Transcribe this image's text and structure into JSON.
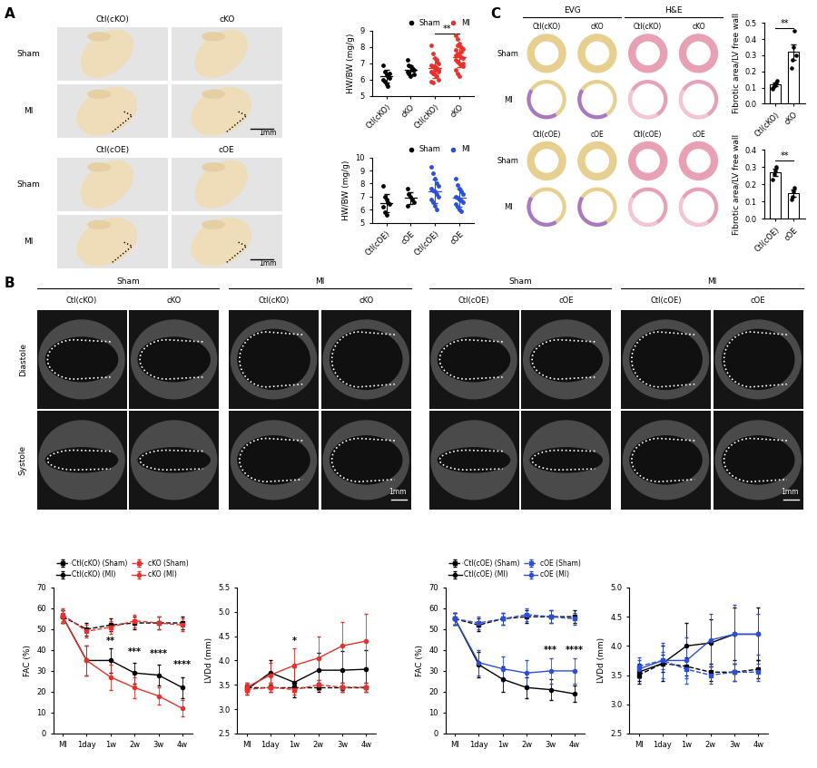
{
  "figure": {
    "panel_labels": [
      "A",
      "B",
      "C"
    ],
    "scale_bar": "1mm",
    "panel_A": {
      "rows": [
        "Sham",
        "MI"
      ],
      "groups": [
        {
          "columns": [
            "Ctl(cKO)",
            "cKO"
          ]
        },
        {
          "columns": [
            "Ctl(cOE)",
            "cOE"
          ]
        }
      ]
    },
    "panel_B": {
      "rows": [
        "Diastole",
        "Systole"
      ],
      "groups": [
        {
          "title": "Sham",
          "columns": [
            "Ctl(cKO)",
            "cKO"
          ]
        },
        {
          "title": "MI",
          "columns": [
            "Ctl(cKO)",
            "cKO"
          ]
        },
        {
          "title": "Sham",
          "columns": [
            "Ctl(cOE)",
            "cOE"
          ]
        },
        {
          "title": "MI",
          "columns": [
            "Ctl(cOE)",
            "cOE"
          ]
        }
      ]
    },
    "panel_C": {
      "stains": [
        "EVG",
        "H&E"
      ],
      "rows": [
        "Sham",
        "MI"
      ],
      "groups": [
        {
          "columns": [
            "Ctl(cKO)",
            "cKO"
          ]
        },
        {
          "columns": [
            "Ctl(cOE)",
            "cOE"
          ]
        }
      ]
    }
  },
  "chart_data": [
    {
      "type": "scatter",
      "y_label": "HW/BW (mg/g)",
      "categories": [
        "Ctl(cKO)",
        "cKO",
        "Ctl(cKO)",
        "cKO"
      ],
      "ylim": [
        5,
        9
      ],
      "yticks": [
        5,
        6,
        7,
        8,
        9
      ],
      "legend": "lower right",
      "series": [
        {
          "name": "Sham",
          "color": "#000000",
          "points": [
            [
              6.9,
              6.5,
              6.3,
              6.2,
              6.1,
              6.0,
              5.9,
              5.7,
              5.6,
              6.4
            ],
            [
              7.2,
              6.9,
              6.8,
              6.7,
              6.6,
              6.5,
              6.4,
              6.2,
              6.6,
              6.3
            ],
            null,
            null
          ],
          "mean": [
            6.2,
            6.6,
            null,
            null
          ],
          "sd": [
            0.4,
            0.3,
            null,
            null
          ]
        },
        {
          "name": "MI",
          "color": "#e8312b",
          "points": [
            null,
            null,
            [
              8.1,
              7.6,
              7.3,
              7.1,
              7.0,
              6.9,
              6.8,
              6.8,
              6.7,
              6.6,
              6.5,
              6.4,
              6.3,
              6.2,
              6.0,
              5.9,
              5.8,
              6.6,
              7.2,
              6.5
            ],
            [
              8.7,
              8.5,
              8.2,
              8.0,
              7.9,
              7.8,
              7.6,
              7.5,
              7.4,
              7.3,
              7.2,
              7.1,
              7.0,
              6.9,
              6.8,
              6.6,
              6.4,
              6.2,
              7.7,
              7.0,
              7.5,
              8.1
            ]
          ],
          "mean": [
            null,
            null,
            6.7,
            7.4
          ],
          "sd": [
            null,
            null,
            0.6,
            0.65
          ]
        }
      ],
      "annotations": [
        {
          "text": "**",
          "between": [
            2,
            3
          ],
          "y": 8.85
        }
      ]
    },
    {
      "type": "scatter",
      "y_label": "HW/BW (mg/g)",
      "categories": [
        "Ctl(cOE)",
        "cOE",
        "Ctl(cOE)",
        "cOE"
      ],
      "ylim": [
        5,
        10
      ],
      "yticks": [
        5,
        6,
        7,
        8,
        9,
        10
      ],
      "legend": "lower right",
      "series": [
        {
          "name": "Sham",
          "color": "#000000",
          "points": [
            [
              7.8,
              7.0,
              6.8,
              6.6,
              6.4,
              6.2,
              5.8,
              5.6
            ],
            [
              7.6,
              7.2,
              7.0,
              6.8,
              6.6,
              6.3
            ],
            null,
            null
          ],
          "mean": [
            6.5,
            6.9,
            null,
            null
          ],
          "sd": [
            0.7,
            0.45,
            null,
            null
          ]
        },
        {
          "name": "MI",
          "color": "#2a4fd8",
          "points": [
            null,
            null,
            [
              9.3,
              8.8,
              8.4,
              8.0,
              7.8,
              7.6,
              7.5,
              7.4,
              7.2,
              7.0,
              6.8,
              6.6,
              6.3,
              6.0
            ],
            [
              8.4,
              7.9,
              7.6,
              7.4,
              7.2,
              7.0,
              6.9,
              6.8,
              6.7,
              6.6,
              6.4,
              6.2,
              6.0,
              5.9
            ]
          ],
          "mean": [
            null,
            null,
            7.4,
            6.9
          ],
          "sd": [
            null,
            null,
            0.9,
            0.7
          ]
        }
      ],
      "annotations": []
    },
    {
      "type": "bar",
      "y_label": "Fibrotic area/LV free wall",
      "categories": [
        "Ctl(cKO)",
        "cKO"
      ],
      "values": [
        0.12,
        0.32
      ],
      "error": [
        0.01,
        0.05
      ],
      "points": [
        [
          0.09,
          0.11,
          0.12,
          0.13,
          0.14,
          0.1,
          0.12
        ],
        [
          0.22,
          0.27,
          0.35,
          0.45,
          0.3
        ]
      ],
      "color": "#ffffff",
      "ylim": [
        0,
        0.5
      ],
      "yticks": [
        {
          "value": 0,
          "label": "0.0"
        },
        0.1,
        0.2,
        0.3,
        0.4,
        0.5
      ],
      "annotations": [
        {
          "text": "**",
          "between": [
            0,
            1
          ],
          "y": 0.47
        }
      ]
    },
    {
      "type": "bar",
      "y_label": "Fibrotic area/LV free wall",
      "categories": [
        "Ctl(cOE)",
        "cOE"
      ],
      "values": [
        0.27,
        0.15
      ],
      "error": [
        0.02,
        0.02
      ],
      "points": [
        [
          0.23,
          0.26,
          0.28,
          0.3
        ],
        [
          0.11,
          0.13,
          0.16,
          0.18
        ]
      ],
      "color": "#ffffff",
      "ylim": [
        0,
        0.4
      ],
      "yticks": [
        {
          "value": 0,
          "label": "0.0"
        },
        0.1,
        0.2,
        0.3,
        0.4
      ],
      "annotations": [
        {
          "text": "**",
          "between": [
            0,
            1
          ],
          "y": 0.34
        }
      ]
    },
    {
      "type": "line",
      "y_label": "FAC (%)",
      "categories": [
        "MI",
        "1day",
        "1w",
        "2w",
        "3w",
        "4w"
      ],
      "ylim": [
        0,
        70
      ],
      "yticks": [
        0,
        10,
        20,
        30,
        40,
        50,
        60,
        70
      ],
      "legend": "lower left",
      "series": [
        {
          "name": "Ctl(cKO) (Sham)",
          "color": "#000000",
          "marker": "square",
          "line_style": "dashed",
          "values": [
            56,
            50,
            52,
            53,
            53,
            53
          ],
          "error": [
            3,
            3,
            3,
            3,
            3,
            3
          ]
        },
        {
          "name": "Ctl(cKO) (MI)",
          "color": "#000000",
          "marker": "circle",
          "line_style": "solid",
          "values": [
            56,
            35,
            35,
            29,
            28,
            22
          ],
          "error": [
            3,
            7,
            6,
            5,
            5,
            5
          ]
        },
        {
          "name": "cKO (Sham)",
          "color": "#e8312b",
          "marker": "square",
          "line_style": "dashed",
          "values": [
            57,
            49,
            51,
            54,
            53,
            52
          ],
          "error": [
            3,
            3,
            3,
            3,
            3,
            3
          ]
        },
        {
          "name": "cKO (MI)",
          "color": "#e8312b",
          "marker": "circle",
          "line_style": "solid",
          "values": [
            56,
            35,
            27,
            22,
            18,
            12
          ],
          "error": [
            3,
            7,
            6,
            5,
            4,
            4
          ]
        }
      ],
      "annotations": [
        {
          "x": "1w",
          "y": 42,
          "text": "**"
        },
        {
          "x": "2w",
          "y": 37,
          "text": "***"
        },
        {
          "x": "3w",
          "y": 36,
          "text": "****"
        },
        {
          "x": "4w",
          "y": 31,
          "text": "****"
        }
      ]
    },
    {
      "type": "line",
      "y_label": "LVDd (mm)",
      "categories": [
        "MI",
        "1day",
        "1w",
        "2w",
        "3w",
        "4w"
      ],
      "ylim": [
        2.5,
        5.5
      ],
      "yticks": [
        2.5,
        3.0,
        3.5,
        4.0,
        4.5,
        5.0,
        5.5
      ],
      "series": [
        {
          "color": "#000000",
          "marker": "square",
          "line_style": "dashed",
          "values": [
            3.45,
            3.45,
            3.45,
            3.45,
            3.45,
            3.45
          ],
          "error": [
            0.1,
            0.1,
            0.1,
            0.1,
            0.1,
            0.1
          ]
        },
        {
          "color": "#000000",
          "marker": "circle",
          "line_style": "solid",
          "values": [
            3.4,
            3.75,
            3.55,
            3.8,
            3.8,
            3.82
          ],
          "error": [
            0.1,
            0.25,
            0.3,
            0.35,
            0.4,
            0.4
          ]
        },
        {
          "color": "#e8312b",
          "marker": "square",
          "line_style": "dashed",
          "values": [
            3.4,
            3.45,
            3.4,
            3.5,
            3.45,
            3.45
          ],
          "error": [
            0.1,
            0.1,
            0.1,
            0.1,
            0.1,
            0.1
          ]
        },
        {
          "color": "#e8312b",
          "marker": "circle",
          "line_style": "solid",
          "values": [
            3.45,
            3.7,
            3.9,
            4.05,
            4.3,
            4.4
          ],
          "error": [
            0.1,
            0.25,
            0.35,
            0.45,
            0.5,
            0.55
          ]
        }
      ],
      "annotations": [
        {
          "x": "1w",
          "y": 4.3,
          "text": "*"
        }
      ]
    },
    {
      "type": "line",
      "y_label": "FAC (%)",
      "categories": [
        "MI",
        "1day",
        "1w",
        "2w",
        "3w",
        "4w"
      ],
      "ylim": [
        0,
        70
      ],
      "yticks": [
        0,
        10,
        20,
        30,
        40,
        50,
        60,
        70
      ],
      "legend": "lower left",
      "series": [
        {
          "name": "Ctl(cOE) (Sham)",
          "color": "#000000",
          "marker": "square",
          "line_style": "dashed",
          "values": [
            55,
            52,
            55,
            56,
            56,
            56
          ],
          "error": [
            3,
            3,
            3,
            3,
            3,
            3
          ]
        },
        {
          "name": "Ctl(cOE) (MI)",
          "color": "#000000",
          "marker": "circle",
          "line_style": "solid",
          "values": [
            55,
            33,
            26,
            22,
            21,
            19
          ],
          "error": [
            3,
            6,
            6,
            5,
            5,
            4
          ]
        },
        {
          "name": "cOE (Sham)",
          "color": "#2a4fd8",
          "marker": "square",
          "line_style": "dashed",
          "values": [
            55,
            53,
            55,
            57,
            56,
            55
          ],
          "error": [
            3,
            3,
            3,
            3,
            3,
            3
          ]
        },
        {
          "name": "cOE (MI)",
          "color": "#2a4fd8",
          "marker": "circle",
          "line_style": "solid",
          "values": [
            55,
            34,
            31,
            29,
            30,
            30
          ],
          "error": [
            3,
            6,
            6,
            6,
            6,
            6
          ]
        }
      ],
      "annotations": [
        {
          "x": "3w",
          "y": 38,
          "text": "***"
        },
        {
          "x": "4w",
          "y": 38,
          "text": "****"
        }
      ]
    },
    {
      "type": "line",
      "y_label": "LVDd (mm)",
      "categories": [
        "MI",
        "1day",
        "1w",
        "2w",
        "3w",
        "4w"
      ],
      "ylim": [
        2.5,
        5.0
      ],
      "yticks": [
        2.5,
        3.0,
        3.5,
        4.0,
        4.5,
        5.0
      ],
      "series": [
        {
          "color": "#000000",
          "marker": "square",
          "line_style": "dashed",
          "values": [
            3.5,
            3.7,
            3.65,
            3.55,
            3.55,
            3.6
          ],
          "error": [
            0.15,
            0.15,
            0.15,
            0.15,
            0.15,
            0.15
          ]
        },
        {
          "color": "#000000",
          "marker": "circle",
          "line_style": "solid",
          "values": [
            3.55,
            3.7,
            4.0,
            4.05,
            4.2,
            4.2
          ],
          "error": [
            0.15,
            0.3,
            0.4,
            0.4,
            0.45,
            0.45
          ]
        },
        {
          "color": "#2a4fd8",
          "marker": "square",
          "line_style": "dashed",
          "values": [
            3.65,
            3.75,
            3.6,
            3.5,
            3.55,
            3.55
          ],
          "error": [
            0.15,
            0.15,
            0.15,
            0.15,
            0.15,
            0.15
          ]
        },
        {
          "color": "#2a4fd8",
          "marker": "circle",
          "line_style": "solid",
          "values": [
            3.6,
            3.75,
            3.75,
            4.1,
            4.2,
            4.2
          ],
          "error": [
            0.15,
            0.3,
            0.4,
            0.45,
            0.5,
            0.35
          ]
        }
      ],
      "annotations": []
    }
  ]
}
